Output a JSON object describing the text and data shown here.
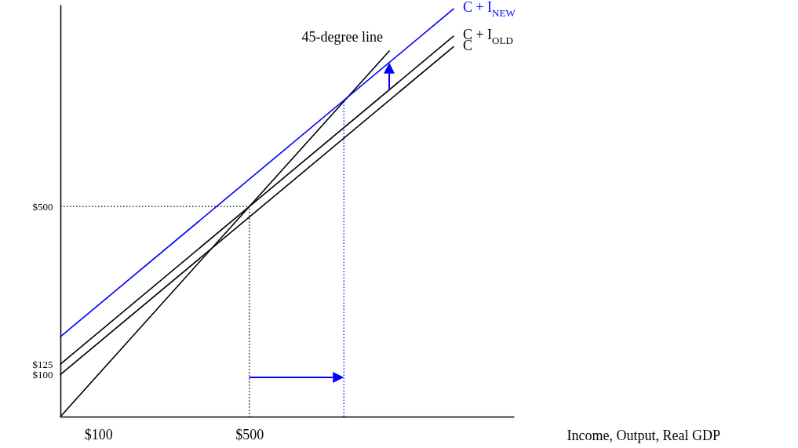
{
  "chart_data": {
    "type": "line",
    "xlabel": "Income, Output, Real GDP",
    "xlim": [
      0,
      1200
    ],
    "ylim": [
      0,
      980
    ],
    "xticks": [
      {
        "value": 100,
        "label": "$100"
      },
      {
        "value": 500,
        "label": "$500"
      }
    ],
    "yticks": [
      {
        "value": 100,
        "label": "$100"
      },
      {
        "value": 125,
        "label": "$125"
      },
      {
        "value": 500,
        "label": "$500"
      }
    ],
    "series": [
      {
        "name": "45-degree line",
        "color": "#000000",
        "x": [
          0,
          870
        ],
        "values": [
          0,
          870
        ]
      },
      {
        "name": "C + I$_{NEW}$",
        "color": "#0000ff",
        "x": [
          0,
          1040
        ],
        "values": [
          190,
          970
        ]
      },
      {
        "name": "C + I$_{OLD}$",
        "color": "#000000",
        "x": [
          0,
          1040
        ],
        "values": [
          125,
          905
        ]
      },
      {
        "name": "C",
        "color": "#000000",
        "x": [
          0,
          1040
        ],
        "values": [
          100,
          880
        ]
      },
      {
        "color": "#000000",
        "line_style": "dotted",
        "x": [
          0,
          500,
          500
        ],
        "values": [
          500,
          500,
          0
        ]
      },
      {
        "color": "#0000ff",
        "line_style": "dotted",
        "x": [
          750,
          750
        ],
        "values": [
          0,
          750
        ]
      }
    ]
  }
}
